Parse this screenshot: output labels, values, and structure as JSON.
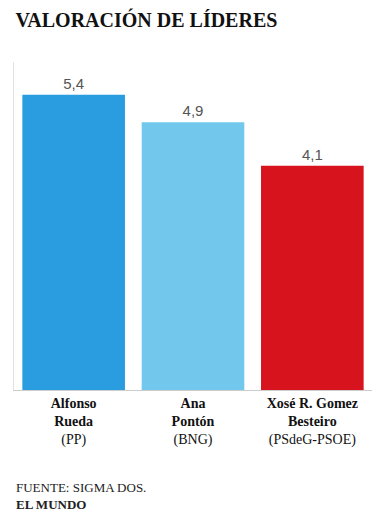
{
  "chart_data": {
    "type": "bar",
    "title": "VALORACIÓN DE LÍDERES",
    "categories": [
      "Alfonso\nRueda\n(PP)",
      "Ana\nPontón\n(BNG)",
      "Xosé R. Gomez\nBesteiro\n(PSdeG-PSOE)"
    ],
    "values": [
      5.4,
      4.9,
      4.1
    ],
    "value_labels": [
      "5,4",
      "4,9",
      "4,1"
    ],
    "colors": [
      "#2a9de0",
      "#72c8ec",
      "#d7141d"
    ],
    "ylim": [
      0,
      6
    ],
    "yticks": [],
    "grid": false,
    "data_labels": true,
    "tick_labels": "x",
    "annotations": [
      "FUENTE: SIGMA DOS.",
      "EL MUNDO"
    ]
  }
}
